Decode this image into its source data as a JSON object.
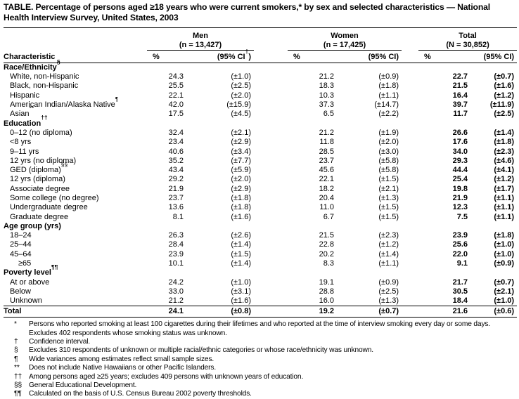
{
  "title": "TABLE. Percentage of persons aged ≥18 years who were current smokers,* by sex and selected characteristics — National Health Interview Survey, United States, 2003",
  "table": {
    "characteristic_header": "Characteristic",
    "groups": [
      {
        "label": "Men",
        "n": "(n = 13,427)",
        "pct_header": "%",
        "ci_prefix": "(95% CI",
        "ci_sup": "†",
        "ci_suffix": ")"
      },
      {
        "label": "Women",
        "n": "(n = 17,425)",
        "pct_header": "%",
        "ci_prefix": "(95% CI)",
        "ci_sup": "",
        "ci_suffix": ""
      },
      {
        "label": "Total",
        "n": "(N = 30,852)",
        "pct_header": "%",
        "ci_prefix": "(95% CI)",
        "ci_sup": "",
        "ci_suffix": ""
      }
    ],
    "sections": [
      {
        "label": "Race/Ethnicity",
        "sup": "§",
        "rows": [
          {
            "label": "White, non-Hispanic",
            "values": [
              "24.3",
              "(±1.0)",
              "21.2",
              "(±0.9)",
              "22.7",
              "(±0.7)"
            ]
          },
          {
            "label": "Black, non-Hispanic",
            "values": [
              "25.5",
              "(±2.5)",
              "18.3",
              "(±1.8)",
              "21.5",
              "(±1.6)"
            ]
          },
          {
            "label": "Hispanic",
            "values": [
              "22.1",
              "(±2.0)",
              "10.3",
              "(±1.1)",
              "16.4",
              "(±1.2)"
            ]
          },
          {
            "label": "American Indian/Alaska Native",
            "sup": "¶",
            "values": [
              "42.0",
              "(±15.9)",
              "37.3",
              "(±14.7)",
              "39.7",
              "(±11.9)"
            ]
          },
          {
            "label": "Asian",
            "sup": "**",
            "values": [
              "17.5",
              "(±4.5)",
              "6.5",
              "(±2.2)",
              "11.7",
              "(±2.5)"
            ]
          }
        ]
      },
      {
        "label": "Education",
        "sup": "††",
        "rows": [
          {
            "label": "0–12 (no diploma)",
            "values": [
              "32.4",
              "(±2.1)",
              "21.2",
              "(±1.9)",
              "26.6",
              "(±1.4)"
            ]
          },
          {
            "label": "<8 yrs",
            "values": [
              "23.4",
              "(±2.9)",
              "11.8",
              "(±2.0)",
              "17.6",
              "(±1.8)"
            ]
          },
          {
            "label": "9–11 yrs",
            "values": [
              "40.6",
              "(±3.4)",
              "28.5",
              "(±3.0)",
              "34.0",
              "(±2.3)"
            ]
          },
          {
            "label": "12 yrs (no diploma)",
            "values": [
              "35.2",
              "(±7.7)",
              "23.7",
              "(±5.8)",
              "29.3",
              "(±4.6)"
            ]
          },
          {
            "label": "GED (diploma)",
            "sup": "§§",
            "values": [
              "43.4",
              "(±5.9)",
              "45.6",
              "(±5.8)",
              "44.4",
              "(±4.1)"
            ]
          },
          {
            "label": "12 yrs (diploma)",
            "values": [
              "29.2",
              "(±2.0)",
              "22.1",
              "(±1.5)",
              "25.4",
              "(±1.2)"
            ]
          },
          {
            "label": "Associate degree",
            "values": [
              "21.9",
              "(±2.9)",
              "18.2",
              "(±2.1)",
              "19.8",
              "(±1.7)"
            ]
          },
          {
            "label": "Some college (no degree)",
            "values": [
              "23.7",
              "(±1.8)",
              "20.4",
              "(±1.3)",
              "21.9",
              "(±1.1)"
            ]
          },
          {
            "label": "Undergraduate degree",
            "values": [
              "13.6",
              "(±1.8)",
              "11.0",
              "(±1.5)",
              "12.3",
              "(±1.1)"
            ]
          },
          {
            "label": "Graduate degree",
            "values": [
              "8.1",
              "(±1.6)",
              "6.7",
              "(±1.5)",
              "7.5",
              "(±1.1)"
            ]
          }
        ]
      },
      {
        "label": "Age group (yrs)",
        "rows": [
          {
            "label": "18–24",
            "values": [
              "26.3",
              "(±2.6)",
              "21.5",
              "(±2.3)",
              "23.9",
              "(±1.8)"
            ]
          },
          {
            "label": "25–44",
            "values": [
              "28.4",
              "(±1.4)",
              "22.8",
              "(±1.2)",
              "25.6",
              "(±1.0)"
            ]
          },
          {
            "label": "45–64",
            "values": [
              "23.9",
              "(±1.5)",
              "20.2",
              "(±1.4)",
              "22.0",
              "(±1.0)"
            ]
          },
          {
            "label": "≥65",
            "indent": 2,
            "values": [
              "10.1",
              "(±1.4)",
              "8.3",
              "(±1.1)",
              "9.1",
              "(±0.9)"
            ]
          }
        ]
      },
      {
        "label": "Poverty level",
        "sup": "¶¶",
        "rows": [
          {
            "label": "At or above",
            "values": [
              "24.2",
              "(±1.0)",
              "19.1",
              "(±0.9)",
              "21.7",
              "(±0.7)"
            ]
          },
          {
            "label": "Below",
            "values": [
              "33.0",
              "(±3.1)",
              "28.8",
              "(±2.5)",
              "30.5",
              "(±2.1)"
            ]
          },
          {
            "label": "Unknown",
            "values": [
              "21.2",
              "(±1.6)",
              "16.0",
              "(±1.3)",
              "18.4",
              "(±1.0)"
            ]
          }
        ]
      }
    ],
    "total_row": {
      "label": "Total",
      "values": [
        "24.1",
        "(±0.8)",
        "19.2",
        "(±0.7)",
        "21.6",
        "(±0.6)"
      ]
    }
  },
  "footnotes": [
    {
      "marker": "*",
      "text": "Persons who reported smoking at least 100 cigarettes during their lifetimes and who reported at the time of interview smoking every day or some days. Excludes 402 respondents whose smoking status was unknown."
    },
    {
      "marker": "†",
      "text": "Confidence interval."
    },
    {
      "marker": "§",
      "text": "Excludes 310 respondents of unknown or multiple racial/ethnic categories or whose race/ethnicity was unknown."
    },
    {
      "marker": "¶",
      "text": "Wide variances among estimates reflect small sample sizes."
    },
    {
      "marker": "**",
      "text": "Does not include Native Hawaiians or other Pacific Islanders."
    },
    {
      "marker": "††",
      "text": "Among persons aged ≥25 years; excludes 409 persons with unknown years of education."
    },
    {
      "marker": "§§",
      "text": "General Educational Development."
    },
    {
      "marker": "¶¶",
      "text": "Calculated on the basis of U.S. Census Bureau 2002 poverty thresholds."
    }
  ]
}
